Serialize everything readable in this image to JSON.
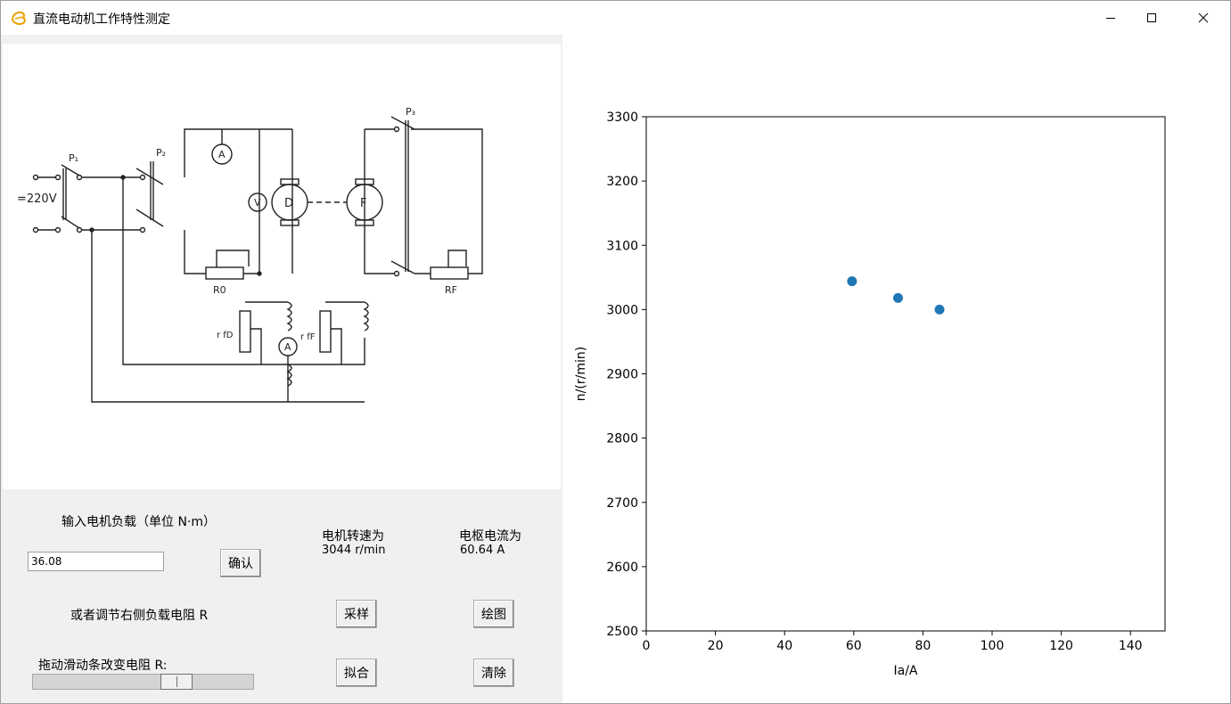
{
  "window": {
    "title": "直流电动机工作特性测定",
    "icon": "python-tk-feather-icon",
    "controls": [
      "minimize-icon",
      "maximize-icon",
      "close-icon"
    ]
  },
  "circuit": {
    "image": "dc-motor-test-circuit-diagram",
    "labels": {
      "voltage": "=220V",
      "switch1": "P₁",
      "switch2": "P₂",
      "switch3": "P₃",
      "ammeter": "A",
      "voltmeter": "V",
      "motor": "D",
      "generator": "F",
      "r0": "R0",
      "rf": "RF",
      "rfd": "r fD",
      "rff": "r fF",
      "field_ammeter": "A"
    }
  },
  "controls": {
    "load_prompt": "输入电机负载（单位 N·m）",
    "load_value": "36.08",
    "confirm_label": "确认",
    "speed_title": "电机转速为",
    "speed_value": "3044 r/min",
    "current_title": "电枢电流为",
    "current_value": "60.64 A",
    "alt_prompt": "或者调节右侧负载电阻 R",
    "sample_label": "采样",
    "plot_label": "绘图",
    "slider_prompt": "拖动滑动条改变电阻 R:",
    "slider_fraction": 0.68,
    "fit_label": "拟合",
    "clear_label": "清除"
  },
  "chart_data": {
    "type": "scatter",
    "xlabel": "Ia/A",
    "ylabel": "n/(r/min)",
    "xlim": [
      0,
      150
    ],
    "ylim": [
      2500,
      3300
    ],
    "xticks": [
      0,
      20,
      40,
      60,
      80,
      100,
      120,
      140
    ],
    "yticks": [
      2500,
      2600,
      2700,
      2800,
      2900,
      3000,
      3100,
      3200,
      3300
    ],
    "grid": false,
    "marker_color": "#1f77b4",
    "x": [
      59.5,
      72.8,
      84.8
    ],
    "y": [
      3044,
      3018,
      3000
    ]
  }
}
